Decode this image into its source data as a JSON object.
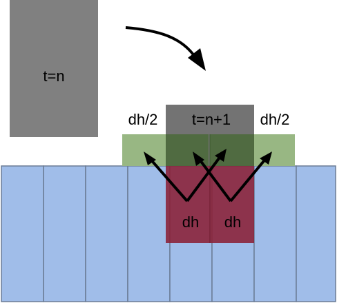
{
  "labels": {
    "t_n": "t=n",
    "t_n1": "t=n+1",
    "dh_half_left": "dh/2",
    "dh_half_right": "dh/2",
    "dh_left": "dh",
    "dh_right": "dh"
  },
  "columns": 8,
  "colors": {
    "column_fill": "#a0bde9",
    "column_stroke": "#6b7c95",
    "block_t_n": "#808080",
    "block_t_n1": "#666666",
    "green_layer": "#98b783",
    "removed_region": "#8a2035",
    "arrow": "#000000"
  }
}
